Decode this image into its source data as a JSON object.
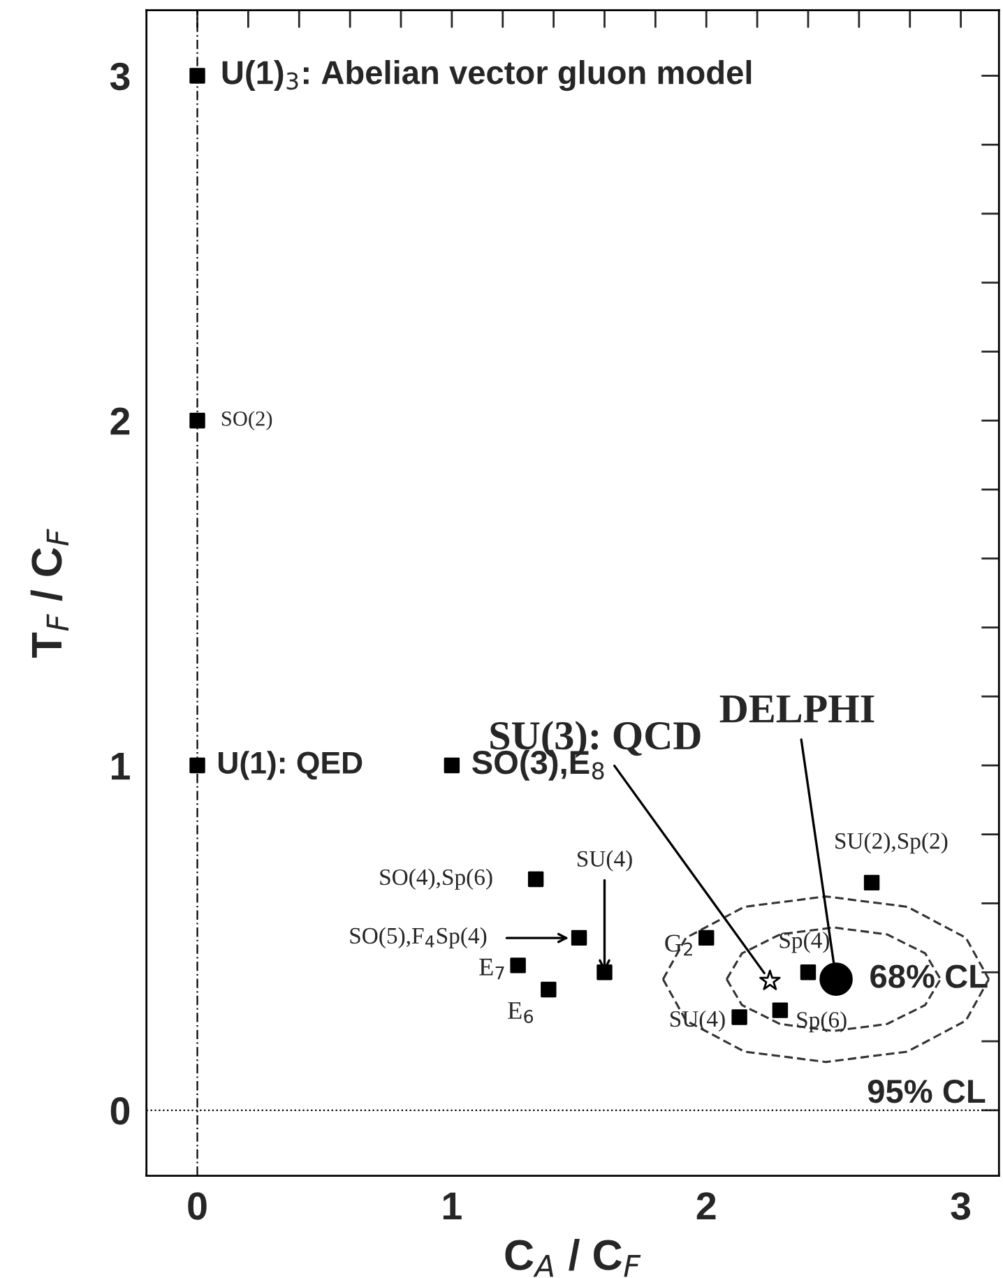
{
  "chart_data": {
    "type": "scatter",
    "xlabel": "C$_{A}$ / C$_{F}$",
    "ylabel": "T$_{F}$ / C$_{F}$",
    "xlim": [
      -0.2,
      3.15
    ],
    "ylim": [
      -0.19,
      3.19
    ],
    "xticks": [
      0,
      {
        "value": 0.2,
        "label": null
      },
      {
        "value": 0.4,
        "label": null
      },
      {
        "value": 0.6,
        "label": null
      },
      {
        "value": 0.8,
        "label": null
      },
      1,
      {
        "value": 1.2,
        "label": null
      },
      {
        "value": 1.4,
        "label": null
      },
      {
        "value": 1.6,
        "label": null
      },
      {
        "value": 1.8,
        "label": null
      },
      2,
      {
        "value": 2.2,
        "label": null
      },
      {
        "value": 2.4,
        "label": null
      },
      {
        "value": 2.6,
        "label": null
      },
      {
        "value": 2.8,
        "label": null
      },
      3
    ],
    "yticks": [
      0,
      {
        "value": 0.2,
        "label": null
      },
      {
        "value": 0.4,
        "label": null
      },
      {
        "value": 0.6,
        "label": null
      },
      {
        "value": 0.8,
        "label": null
      },
      1,
      {
        "value": 1.2,
        "label": null
      },
      {
        "value": 1.4,
        "label": null
      },
      {
        "value": 1.6,
        "label": null
      },
      {
        "value": 1.8,
        "label": null
      },
      2,
      {
        "value": 2.2,
        "label": null
      },
      {
        "value": 2.4,
        "label": null
      },
      {
        "value": 2.6,
        "label": null
      },
      {
        "value": 2.8,
        "label": null
      },
      3
    ],
    "grid": false,
    "legend": false,
    "ref_lines": [
      {
        "axis": "x",
        "value": 0,
        "line_style": "dashed",
        "color": "#000000"
      },
      {
        "axis": "y",
        "value": 0,
        "line_style": "dotted",
        "color": "#000000"
      }
    ],
    "series": [
      {
        "marker": "square",
        "color": "#000000",
        "x": [
          0,
          0,
          0,
          1,
          1.33,
          1.5,
          1.6,
          1.26,
          1.38,
          2.0,
          2.4,
          2.13,
          2.29,
          2.65
        ],
        "values": [
          3,
          2,
          1,
          1,
          0.67,
          0.5,
          0.4,
          0.42,
          0.35,
          0.5,
          0.4,
          0.27,
          0.29,
          0.66
        ]
      },
      {
        "marker": "star",
        "color": "#000000",
        "x": [
          2.25
        ],
        "values": [
          0.375
        ]
      },
      {
        "marker": "circle",
        "color": "#000000",
        "x": [
          2.51
        ],
        "values": [
          0.38
        ]
      },
      {
        "type": "line",
        "line_style": "dashed",
        "color": "#333333",
        "x": [
          2.08,
          2.14,
          2.29,
          2.5,
          2.71,
          2.86,
          2.92
        ],
        "values": [
          0.38,
          0.455,
          0.51,
          0.53,
          0.51,
          0.455,
          0.38
        ]
      },
      {
        "type": "line",
        "line_style": "dashed",
        "color": "#333333",
        "x": [
          2.08,
          2.14,
          2.29,
          2.5,
          2.71,
          2.86,
          2.92
        ],
        "values": [
          0.38,
          0.305,
          0.25,
          0.23,
          0.25,
          0.305,
          0.38
        ]
      },
      {
        "type": "line",
        "line_style": "dashed",
        "color": "#333333",
        "x": [
          1.83,
          1.92,
          2.15,
          2.47,
          2.79,
          3.02,
          3.11
        ],
        "values": [
          0.38,
          0.5,
          0.59,
          0.62,
          0.59,
          0.5,
          0.38
        ]
      },
      {
        "type": "line",
        "line_style": "dashed",
        "color": "#333333",
        "x": [
          1.83,
          1.92,
          2.15,
          2.47,
          2.79,
          3.02,
          3.11
        ],
        "values": [
          0.38,
          0.26,
          0.17,
          0.14,
          0.17,
          0.26,
          0.38
        ]
      }
    ],
    "annotations": [
      {
        "text": "U(1)$_{3}$: Abelian vector gluon model",
        "x": 0,
        "y": 3
      },
      {
        "text": "SO(2)",
        "x": 0,
        "y": 2
      },
      {
        "text": "U(1): QED",
        "x": 0,
        "y": 1
      },
      {
        "text": "SO(3),E$_{8}$",
        "x": 1,
        "y": 1
      },
      {
        "text": "SO(4),Sp(6)",
        "x": 1.33,
        "y": 0.67
      },
      "SO(5),F$_{4}$Sp(4)",
      {
        "text": "SU(4)",
        "x": 1.6,
        "y": 0.4
      },
      {
        "text": "E$_{7}$",
        "x": 1.26,
        "y": 0.42
      },
      {
        "text": "E$_{6}$",
        "x": 1.38,
        "y": 0.35
      },
      {
        "text": "G$_{2}$",
        "x": 2.0,
        "y": 0.5
      },
      {
        "text": "Sp(4)",
        "x": 2.4,
        "y": 0.4
      },
      {
        "text": "SU(4)",
        "x": 2.13,
        "y": 0.27
      },
      {
        "text": "Sp(6)",
        "x": 2.29,
        "y": 0.29
      },
      {
        "text": "SU(2),Sp(2)",
        "x": 2.65,
        "y": 0.66
      },
      {
        "text": "SU(3): QCD",
        "x": 2.25,
        "y": 0.375
      },
      {
        "text": "DELPHI",
        "x": 2.51,
        "y": 0.38
      },
      {
        "text": "68% CL",
        "x": 2.92,
        "y": 0.38
      },
      "95% CL"
    ]
  }
}
